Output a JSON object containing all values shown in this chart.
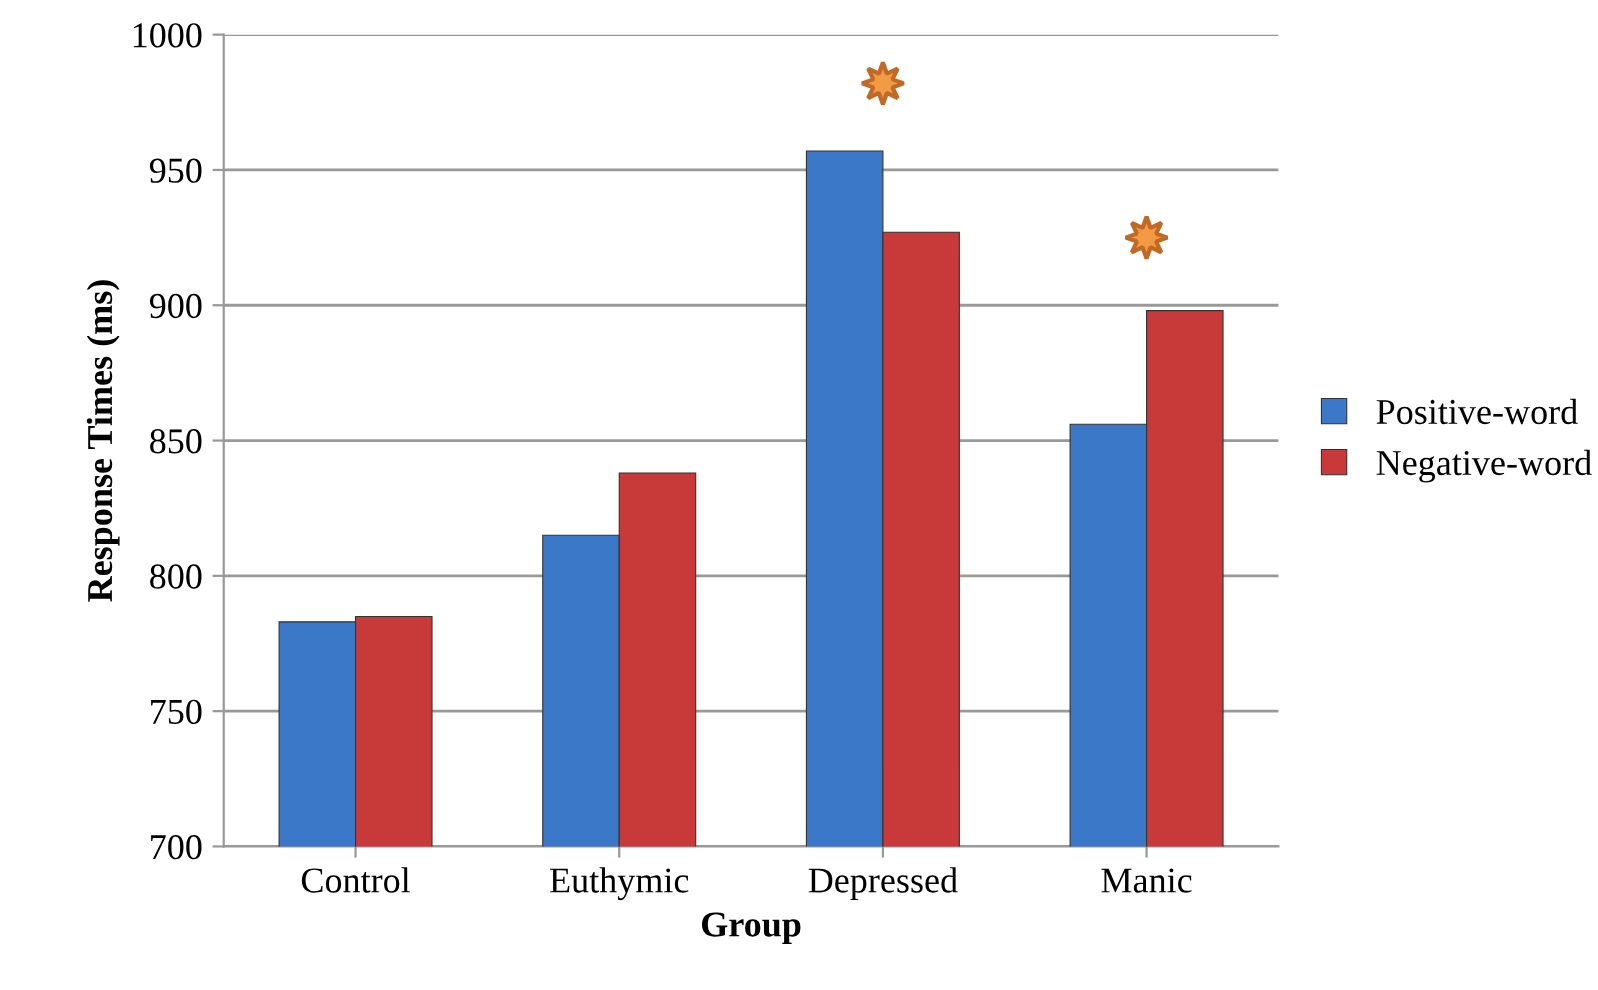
{
  "chart_data": {
    "type": "bar",
    "xlabel": "Group",
    "ylabel": "Response Times (ms)",
    "categories": [
      "Control",
      "Euthymic",
      "Depressed",
      "Manic"
    ],
    "series": [
      {
        "name": "Positive-word",
        "color": "#3b78c8",
        "values": [
          783,
          815,
          957,
          856
        ]
      },
      {
        "name": "Negative-word",
        "color": "#c83a3a",
        "values": [
          785,
          838,
          927,
          898
        ]
      }
    ],
    "ylim": [
      700,
      1000
    ],
    "yticks": [
      700,
      750,
      800,
      850,
      900,
      950,
      1000
    ],
    "grid": "y",
    "legend": "right"
  }
}
